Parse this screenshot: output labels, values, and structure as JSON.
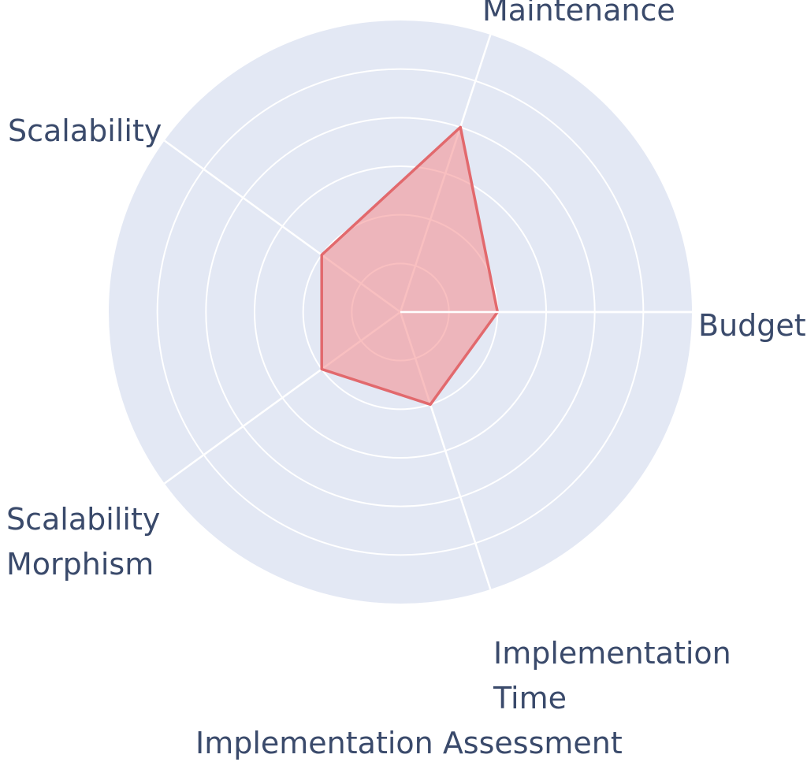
{
  "chart_data": {
    "type": "radar",
    "title": "Implementation Assessment",
    "axes": [
      {
        "label": "Budget",
        "angle_deg": 0,
        "value": 2
      },
      {
        "label": "Maintenance",
        "angle_deg": 72,
        "value": 4
      },
      {
        "label": "Scalability",
        "angle_deg": 144,
        "value": 2
      },
      {
        "label": "Scalability Morphism",
        "display": "Scalability\nMorphism",
        "angle_deg": 216,
        "value": 2
      },
      {
        "label": "Implementation Time",
        "display": "Implementation\nTime",
        "angle_deg": 288,
        "value": 2
      }
    ],
    "rmax": 6,
    "ring_interval": 1,
    "grid": true,
    "tick_labels": "none",
    "legend": "none",
    "colors": {
      "disk": "#e3e8f4",
      "grid": "#ffffff",
      "fill": "#f58f90",
      "fill_opacity": 0.57,
      "stroke": "#e2696d",
      "label": "#3a4a6b"
    }
  }
}
